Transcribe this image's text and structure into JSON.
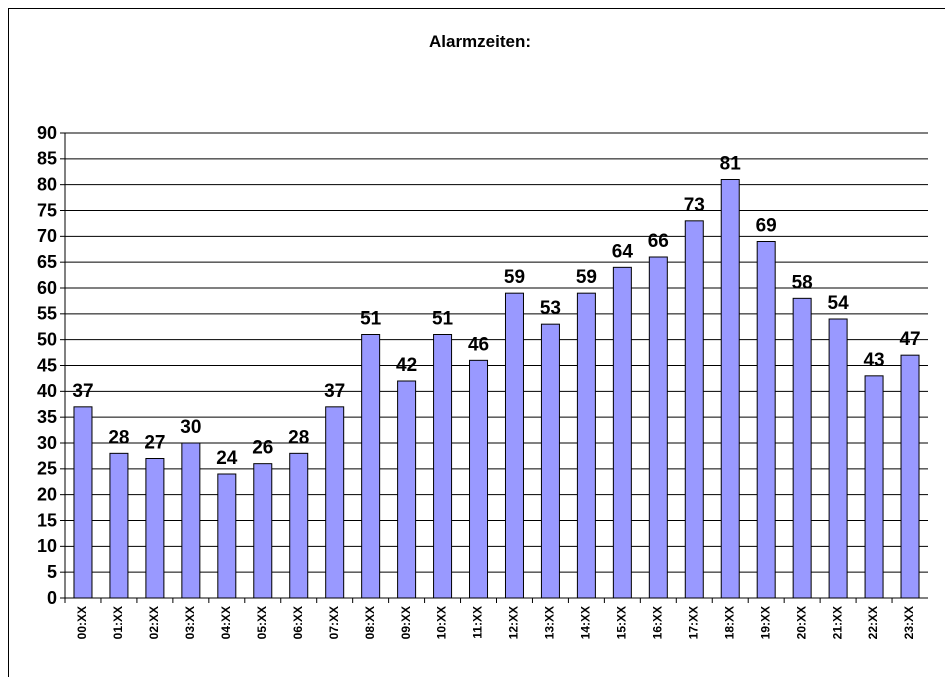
{
  "chart_data": {
    "type": "bar",
    "title": "Alarmzeiten:",
    "categories": [
      "00:XX",
      "01:XX",
      "02:XX",
      "03:XX",
      "04:XX",
      "05:XX",
      "06:XX",
      "07:XX",
      "08:XX",
      "09:XX",
      "10:XX",
      "11:XX",
      "12:XX",
      "13:XX",
      "14:XX",
      "15:XX",
      "16:XX",
      "17:XX",
      "18:XX",
      "19:XX",
      "20:XX",
      "21:XX",
      "22:XX",
      "23:XX"
    ],
    "values": [
      37,
      28,
      27,
      30,
      24,
      26,
      28,
      37,
      51,
      42,
      51,
      46,
      59,
      53,
      59,
      64,
      66,
      73,
      81,
      69,
      58,
      54,
      43,
      47
    ],
    "color": "#9999ff",
    "ylim": [
      0,
      90
    ],
    "yticks": [
      0,
      5,
      10,
      15,
      20,
      25,
      30,
      35,
      40,
      45,
      50,
      55,
      60,
      65,
      70,
      75,
      80,
      85,
      90
    ],
    "grid": true
  }
}
